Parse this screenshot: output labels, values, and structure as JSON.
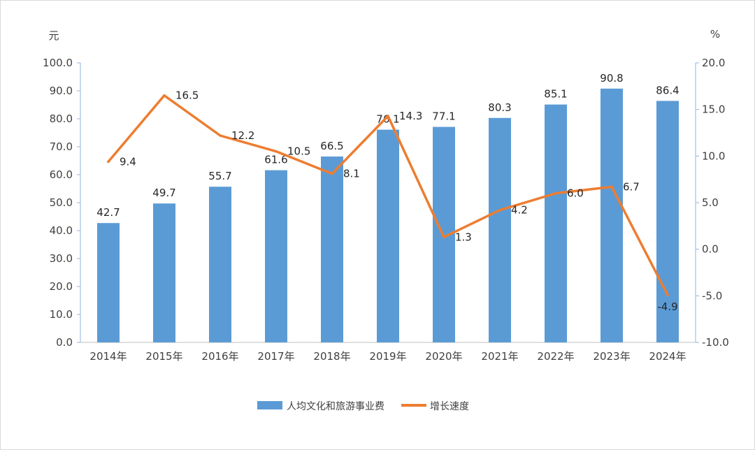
{
  "chart_data": {
    "type": "bar+line",
    "categories": [
      "2014年",
      "2015年",
      "2016年",
      "2017年",
      "2018年",
      "2019年",
      "2020年",
      "2021年",
      "2022年",
      "2023年",
      "2024年"
    ],
    "series": [
      {
        "name": "人均文化和旅游事业费",
        "type": "bar",
        "axis": "left",
        "values": [
          42.7,
          49.7,
          55.7,
          61.6,
          66.5,
          76.1,
          77.1,
          80.3,
          85.1,
          90.8,
          86.4
        ],
        "labels": [
          "42.7",
          "49.7",
          "55.7",
          "61.6",
          "66.5",
          "76.1",
          "77.1",
          "80.3",
          "85.1",
          "90.8",
          "86.4"
        ],
        "color": "#5b9bd5"
      },
      {
        "name": "增长速度",
        "type": "line",
        "axis": "right",
        "values": [
          9.4,
          16.5,
          12.2,
          10.5,
          8.1,
          14.3,
          1.3,
          4.2,
          6.0,
          6.7,
          -4.9
        ],
        "labels": [
          "9.4",
          "16.5",
          "12.2",
          "10.5",
          "8.1",
          "14.3",
          "1.3",
          "4.2",
          "6.0",
          "6.7",
          "-4.9"
        ],
        "color": "#ed7d31"
      }
    ],
    "y_left": {
      "unit": "元",
      "ylim": [
        0,
        100
      ],
      "ticks": [
        "0.0",
        "10.0",
        "20.0",
        "30.0",
        "40.0",
        "50.0",
        "60.0",
        "70.0",
        "80.0",
        "90.0",
        "100.0"
      ]
    },
    "y_right": {
      "unit": "%",
      "ylim": [
        -10,
        20
      ],
      "ticks": [
        "-10.0",
        "-5.0",
        "0.0",
        "5.0",
        "10.0",
        "15.0",
        "20.0"
      ]
    },
    "grid": false,
    "legend": "bottom-center"
  }
}
